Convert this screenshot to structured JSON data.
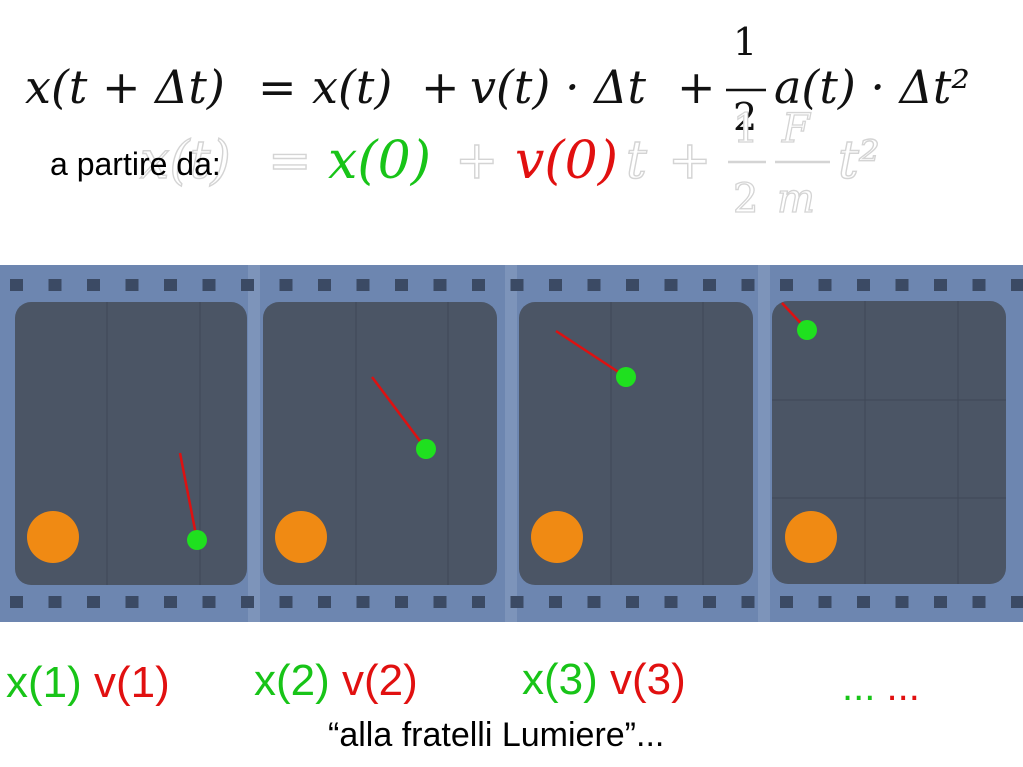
{
  "equations": {
    "update_rule": {
      "lhs": "x(t + Δt)",
      "eq": "=",
      "term1": "x(t)",
      "plus1": "+",
      "term2": "v(t) · Δt",
      "plus2": "+",
      "frac_num": "1",
      "frac_den": "2",
      "term3": "a(t) · Δt²"
    },
    "solution": {
      "lhs": "x(t)",
      "eq": "=",
      "x0": "x(0)",
      "plus1": "+",
      "v0": "v(0)",
      "t": "t",
      "plus2": "+",
      "frac1_num": "1",
      "frac1_den": "2",
      "frac2_num": "F",
      "frac2_den": "m",
      "t2": "t²"
    }
  },
  "prefix_label": "a partire da:",
  "frames": [
    {
      "caption_x": "x(1)",
      "caption_v": "v(1)"
    },
    {
      "caption_x": "x(2)",
      "caption_v": "v(2)"
    },
    {
      "caption_x": "x(3)",
      "caption_v": "v(3)"
    },
    {
      "caption_x": "...",
      "caption_v": "..."
    }
  ],
  "footer": "“alla fratelli Lumiere”...",
  "colors": {
    "film": "#6d86b0",
    "frame": "#4b5565",
    "ball": "#f08a13",
    "point": "#1fe01f",
    "velocity": "#dd1111",
    "position_text": "#18c418",
    "velocity_text": "#e11010"
  }
}
